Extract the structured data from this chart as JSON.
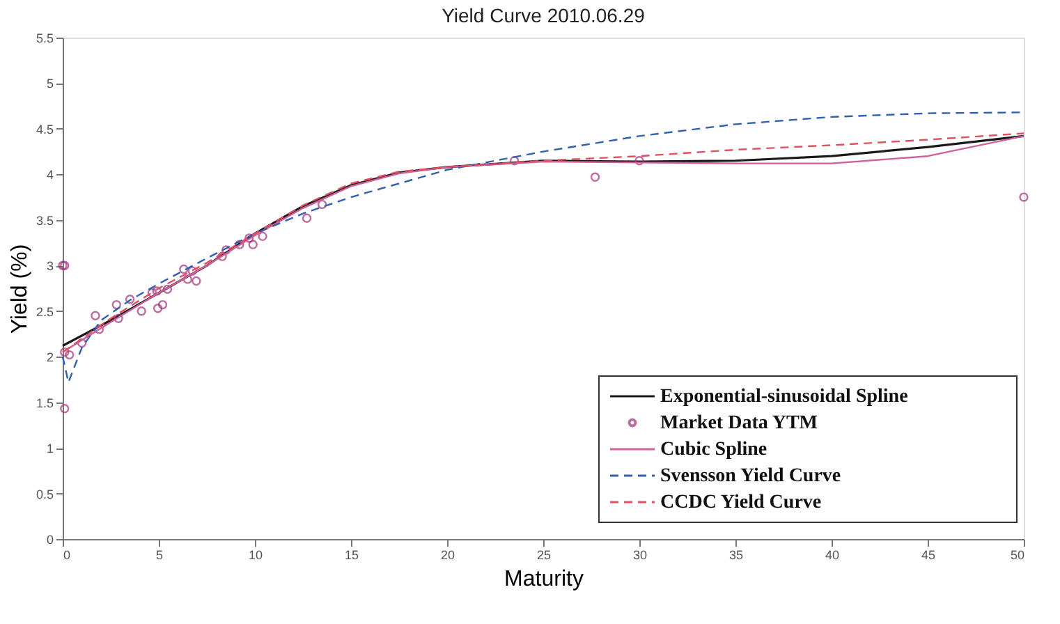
{
  "chart_data": {
    "type": "line",
    "title": "Yield Curve 2010.06.29",
    "xlabel": "Maturity",
    "ylabel": "Yield (%)",
    "xlim": [
      0,
      50
    ],
    "xticks": [
      0,
      5,
      10,
      15,
      20,
      25,
      30,
      35,
      40,
      45,
      50
    ],
    "ylim": [
      0,
      5.5
    ],
    "yticks": [
      0,
      0.5,
      1,
      1.5,
      2,
      2.5,
      3,
      3.5,
      4,
      4.5,
      5,
      5.5
    ],
    "grid": false,
    "legend": "bottom right",
    "series": [
      {
        "name": "Exponential-sinusoidal Spline",
        "line_style": "solid",
        "color": "#1a1a1a",
        "x": [
          0,
          2.5,
          5,
          7.5,
          10,
          12.5,
          15,
          17.5,
          20,
          25,
          30,
          35,
          40,
          45,
          50
        ],
        "values": [
          2.12,
          2.4,
          2.7,
          3.0,
          3.35,
          3.65,
          3.88,
          4.02,
          4.08,
          4.15,
          4.14,
          4.15,
          4.2,
          4.3,
          4.42
        ]
      },
      {
        "name": "Market Data YTM",
        "type": "scatter",
        "marker": "circle",
        "color": "#a0307a",
        "x": [
          0,
          0.1,
          0.1,
          0.35,
          0.1,
          1.0,
          1.7,
          1.9,
          2.8,
          2.9,
          3.5,
          4.1,
          4.65,
          4.9,
          4.95,
          5.2,
          5.45,
          6.3,
          6.5,
          6.75,
          6.95,
          8.3,
          8.5,
          9.2,
          9.7,
          9.9,
          10.4,
          12.7,
          13.5,
          23.5,
          27.7,
          30,
          50
        ],
        "values": [
          3.0,
          3.0,
          2.05,
          2.02,
          1.43,
          2.15,
          2.45,
          2.3,
          2.57,
          2.42,
          2.63,
          2.5,
          2.7,
          2.72,
          2.53,
          2.57,
          2.74,
          2.96,
          2.85,
          2.94,
          2.83,
          3.1,
          3.17,
          3.23,
          3.3,
          3.23,
          3.32,
          3.52,
          3.67,
          4.15,
          3.97,
          4.15,
          3.75
        ]
      },
      {
        "name": "Cubic Spline",
        "line_style": "solid",
        "color": "#d0609a",
        "x": [
          0,
          2.5,
          5,
          7.5,
          10,
          12.5,
          15,
          17.5,
          20,
          25,
          30,
          35,
          40,
          45,
          50
        ],
        "values": [
          2.05,
          2.38,
          2.7,
          3.0,
          3.33,
          3.63,
          3.87,
          4.01,
          4.08,
          4.14,
          4.13,
          4.12,
          4.12,
          4.2,
          4.42
        ]
      },
      {
        "name": "Svensson Yield Curve",
        "line_style": "dashed",
        "color": "#3060b0",
        "x": [
          0,
          0.3,
          1,
          2,
          3.5,
          5,
          7.5,
          10,
          12.5,
          15,
          20,
          25,
          30,
          35,
          40,
          45,
          50
        ],
        "values": [
          2.0,
          1.72,
          2.1,
          2.4,
          2.62,
          2.8,
          3.08,
          3.35,
          3.57,
          3.75,
          4.05,
          4.25,
          4.42,
          4.55,
          4.63,
          4.67,
          4.68
        ]
      },
      {
        "name": "CCDC Yield Curve",
        "line_style": "dashed",
        "color": "#e05060",
        "x": [
          0,
          2.5,
          5,
          7.5,
          10,
          12.5,
          15,
          17.5,
          20,
          25,
          30,
          35,
          40,
          45,
          50
        ],
        "values": [
          2.05,
          2.42,
          2.75,
          3.03,
          3.35,
          3.66,
          3.9,
          4.03,
          4.08,
          4.15,
          4.2,
          4.27,
          4.32,
          4.38,
          4.45
        ]
      }
    ]
  }
}
